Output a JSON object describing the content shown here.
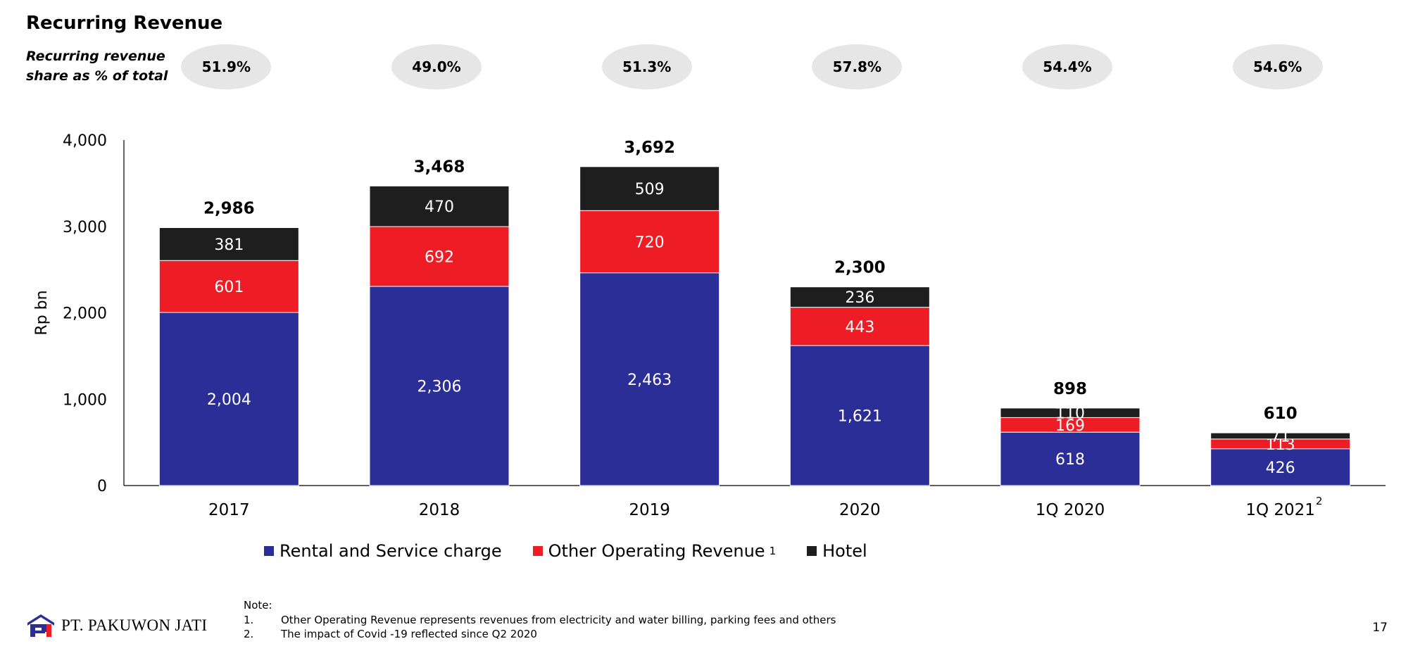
{
  "header": {
    "title": "Recurring Revenue",
    "share_label_line1": "Recurring revenue",
    "share_label_line2": "share as % of total"
  },
  "shares": [
    "51.9%",
    "49.0%",
    "51.3%",
    "57.8%",
    "54.4%",
    "54.6%"
  ],
  "chart_data": {
    "type": "bar",
    "stacked": true,
    "categories": [
      "2017",
      "2018",
      "2019",
      "2020",
      "1Q 2020",
      "1Q 2021"
    ],
    "category_superscripts": [
      "",
      "",
      "",
      "",
      "",
      "2"
    ],
    "series": [
      {
        "name": "Rental and Service charge",
        "values": [
          2004,
          2306,
          2463,
          1621,
          618,
          426
        ],
        "color": "#2a2e96",
        "labels": [
          "2,004",
          "2,306",
          "2,463",
          "1,621",
          "618",
          "426"
        ]
      },
      {
        "name": "Other Operating Revenue",
        "values": [
          601,
          692,
          720,
          443,
          169,
          113
        ],
        "color": "#ee1c25",
        "labels": [
          "601",
          "692",
          "720",
          "443",
          "169",
          "113"
        ]
      },
      {
        "name": "Hotel",
        "values": [
          381,
          470,
          509,
          236,
          110,
          71
        ],
        "color": "#1e1e1e",
        "labels": [
          "381",
          "470",
          "509",
          "236",
          "110",
          "71"
        ]
      }
    ],
    "totals": [
      "2,986",
      "3,468",
      "3,692",
      "2,300",
      "898",
      "610"
    ],
    "ylabel": "Rp bn",
    "ylim": [
      0,
      4000
    ],
    "yticks": [
      0,
      1000,
      2000,
      3000,
      4000
    ],
    "ytick_labels": [
      "0",
      "1,000",
      "2,000",
      "3,000",
      "4,000"
    ],
    "grid": false,
    "legend_position": "bottom"
  },
  "legend": {
    "items": [
      {
        "label": "Rental and Service charge",
        "sup": "",
        "color": "#2a2e96"
      },
      {
        "label": "Other Operating Revenue",
        "sup": "1",
        "color": "#ee1c25"
      },
      {
        "label": "Hotel",
        "sup": "",
        "color": "#1e1e1e"
      }
    ]
  },
  "notes": {
    "heading": "Note:",
    "items": [
      {
        "num": "1.",
        "text": "Other Operating Revenue represents revenues from electricity and water billing, parking fees and others"
      },
      {
        "num": "2.",
        "text": "The impact of Covid -19 reflected since Q2 2020"
      }
    ]
  },
  "footer": {
    "company": "PT. PAKUWON JATI",
    "page": "17",
    "logo_color": "#2a2e96"
  }
}
